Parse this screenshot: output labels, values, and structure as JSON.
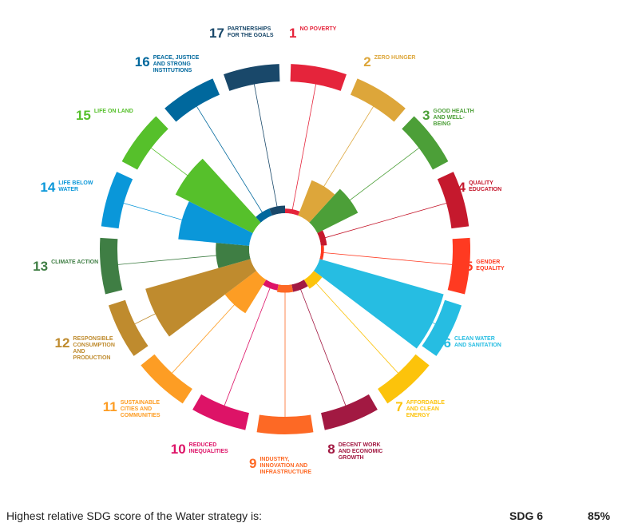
{
  "chart_data": {
    "type": "polar-bar",
    "goal_numbers": [
      1,
      2,
      3,
      4,
      5,
      6,
      7,
      8,
      9,
      10,
      11,
      12,
      13,
      14,
      15,
      16,
      17
    ],
    "categories": [
      "No poverty",
      "Zero hunger",
      "Good health and well-being",
      "Quality education",
      "Gender equality",
      "Clean water and sanitation",
      "Affordable and clean energy",
      "Decent work and economic growth",
      "Industry, innovation and infrastructure",
      "Reduced inequalities",
      "Sustainable cities and communities",
      "Responsible consumption and production",
      "Climate action",
      "Life below water",
      "Life on land",
      "Peace, justice and strong institutions",
      "Partnerships for the goals"
    ],
    "values": [
      3,
      25,
      30,
      4,
      2,
      85,
      7,
      5,
      5,
      4,
      26,
      72,
      22,
      47,
      57,
      5,
      5
    ],
    "colors": [
      "#E5243B",
      "#DDA63A",
      "#4C9F38",
      "#C5192D",
      "#FF3A21",
      "#26BDE2",
      "#FCC30B",
      "#A21942",
      "#FD6925",
      "#DD1367",
      "#FD9D24",
      "#BF8B2E",
      "#3F7E44",
      "#0A97D9",
      "#56C02B",
      "#00689D",
      "#19486A"
    ],
    "rlim": [
      0,
      100
    ]
  },
  "footer": {
    "text": "Highest relative SDG score of the Water strategy is:",
    "goal": "SDG 6",
    "score": "85%"
  }
}
